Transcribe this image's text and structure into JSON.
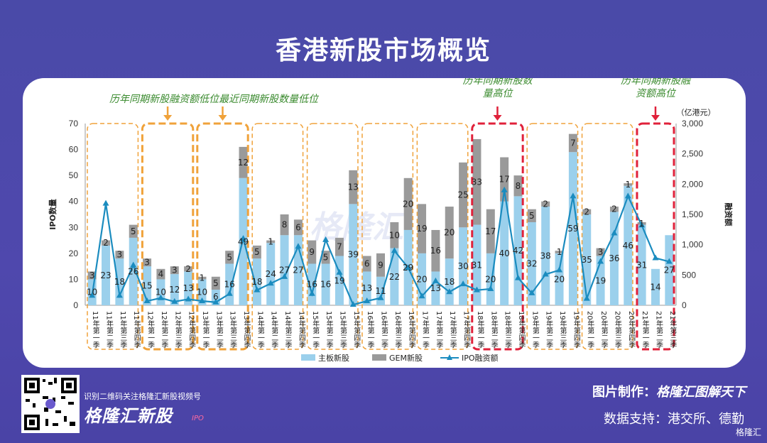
{
  "page": {
    "title": "香港新股市场概览"
  },
  "colors": {
    "main_bar": "#9bd0ec",
    "gem_bar": "#9a9a9a",
    "line": "#1b8cbf",
    "orange": "#f0a23a",
    "red": "#e0213a",
    "annotation_green": "#3a8a2e",
    "background": "#4a4aa8"
  },
  "chart_data": {
    "type": "bar",
    "title": "",
    "ylabel": "IPO数量",
    "y2label": "融资额",
    "y2unit": "（亿港元）",
    "ylim": [
      0,
      70
    ],
    "y2lim": [
      0,
      3000
    ],
    "yticks": [
      "0",
      "10",
      "20",
      "30",
      "40",
      "50",
      "60",
      "70"
    ],
    "y2ticks": [
      "0",
      "500",
      "1,000",
      "1,500",
      "2,000",
      "2,500",
      "3,000"
    ],
    "categories": [
      "11年第一季",
      "11年第二季",
      "11年第三季",
      "11年第四季",
      "12年第一季",
      "12年第二季",
      "12年第三季",
      "12年第四季",
      "13年第一季",
      "13年第二季",
      "13年第三季",
      "13年第四季",
      "14年第一季",
      "14年第二季",
      "14年第三季",
      "14年第四季",
      "15年第一季",
      "15年第二季",
      "15年第三季",
      "15年第四季",
      "16年第一季",
      "16年第二季",
      "16年第三季",
      "16年第四季",
      "17年第一季",
      "17年第二季",
      "17年第三季",
      "17年第四季",
      "18年第一季",
      "18年第二季",
      "18年第三季",
      "18年第四季",
      "19年第一季",
      "19年第二季",
      "19年第三季",
      "19年第四季",
      "20年第一季",
      "20年第二季",
      "20年第三季",
      "20年第四季",
      "21年第一季",
      "21年第二季",
      "21年第三季"
    ],
    "series": [
      {
        "name": "主板新股",
        "type": "bar",
        "values": [
          10,
          23,
          18,
          26,
          15,
          10,
          12,
          13,
          10,
          6,
          16,
          49,
          18,
          24,
          27,
          27,
          16,
          16,
          19,
          39,
          13,
          11,
          22,
          29,
          20,
          13,
          18,
          30,
          31,
          20,
          40,
          42,
          32,
          38,
          20,
          59,
          35,
          19,
          36,
          46,
          31,
          14,
          27
        ]
      },
      {
        "name": "GEM新股",
        "type": "bar",
        "values": [
          3,
          2,
          3,
          5,
          3,
          4,
          3,
          2,
          1,
          5,
          5,
          12,
          5,
          1,
          8,
          6,
          9,
          5,
          7,
          13,
          6,
          9,
          10,
          20,
          19,
          16,
          20,
          25,
          33,
          17,
          17,
          8,
          5,
          2,
          1,
          7,
          2,
          3,
          2,
          1,
          1,
          0,
          0
        ]
      },
      {
        "name": "IPO融资额",
        "type": "line",
        "axis": "y2",
        "values": [
          160,
          1680,
          160,
          660,
          70,
          120,
          60,
          100,
          70,
          50,
          190,
          1100,
          250,
          360,
          470,
          970,
          190,
          1080,
          540,
          10,
          70,
          120,
          900,
          620,
          150,
          400,
          220,
          350,
          250,
          270,
          1900,
          450,
          200,
          510,
          580,
          1800,
          110,
          720,
          1190,
          1800,
          1320,
          780,
          720
        ]
      }
    ],
    "data_labels": {
      "main": [
        "10",
        "23",
        "18",
        "26",
        "15",
        "10",
        "12",
        "13",
        "10",
        "6",
        "16",
        "49",
        "18",
        "24",
        "27",
        "27",
        "16",
        "16",
        "19",
        "39",
        "13",
        "11",
        "22",
        "29",
        "20",
        "13",
        "18",
        "30",
        "31",
        "20",
        "40",
        "42",
        "32",
        "38",
        "20",
        "59",
        "35",
        "19",
        "36",
        "46",
        "31",
        "14",
        "27"
      ],
      "gem": [
        "3",
        "2",
        "3",
        "5",
        "3",
        "4",
        "3",
        "2",
        "1",
        "5",
        "5",
        "12",
        "5",
        "1",
        "8",
        "6",
        "9",
        "5",
        "7",
        "13",
        "6",
        "9",
        "10",
        "20",
        "19",
        "16",
        "20",
        "25",
        "33",
        "17",
        "17",
        "8",
        "5",
        "2",
        "1",
        "7",
        "2",
        "3",
        "2",
        "1",
        "1",
        "",
        ""
      ]
    },
    "legend": [
      "主板新股",
      "GEM新股",
      "IPO融资额"
    ],
    "legend_position": "bottom",
    "groups": [
      {
        "quarters": [
          0,
          3
        ],
        "style": "orange-thin"
      },
      {
        "quarters": [
          4,
          7
        ],
        "style": "orange-thick"
      },
      {
        "quarters": [
          8,
          11
        ],
        "style": "orange-thick"
      },
      {
        "quarters": [
          12,
          15
        ],
        "style": "orange-thin"
      },
      {
        "quarters": [
          16,
          19
        ],
        "style": "orange-thin"
      },
      {
        "quarters": [
          20,
          23
        ],
        "style": "orange-thin"
      },
      {
        "quarters": [
          24,
          27
        ],
        "style": "orange-thin"
      },
      {
        "quarters": [
          28,
          31
        ],
        "style": "red"
      },
      {
        "quarters": [
          32,
          35
        ],
        "style": "orange-thin"
      },
      {
        "quarters": [
          36,
          39
        ],
        "style": "orange-thin"
      },
      {
        "quarters": [
          40,
          42
        ],
        "style": "red"
      }
    ],
    "annotations": [
      {
        "lines": [
          "历年同期新股融资额低位"
        ],
        "target_group": 1,
        "arrow": "orange"
      },
      {
        "lines": [
          "最近同期新股数量低位"
        ],
        "target_group": 2,
        "arrow": "orange"
      },
      {
        "lines": [
          "历年同期新股数",
          "量高位"
        ],
        "target_group": 7,
        "arrow": "red"
      },
      {
        "lines": [
          "历年同期新股融",
          "资额高位"
        ],
        "target_group": 10,
        "arrow": "red"
      }
    ],
    "watermark": "格隆汇"
  },
  "footer": {
    "qr_note": "识别二维码关注格隆汇新股视频号",
    "brand": "格隆汇新股",
    "brand_sub": "IPO",
    "credit_label": "图片制作：",
    "credit_value": "格隆汇图解天下",
    "source": "数据支持：港交所、德勤",
    "corner_logo": "格隆汇"
  }
}
